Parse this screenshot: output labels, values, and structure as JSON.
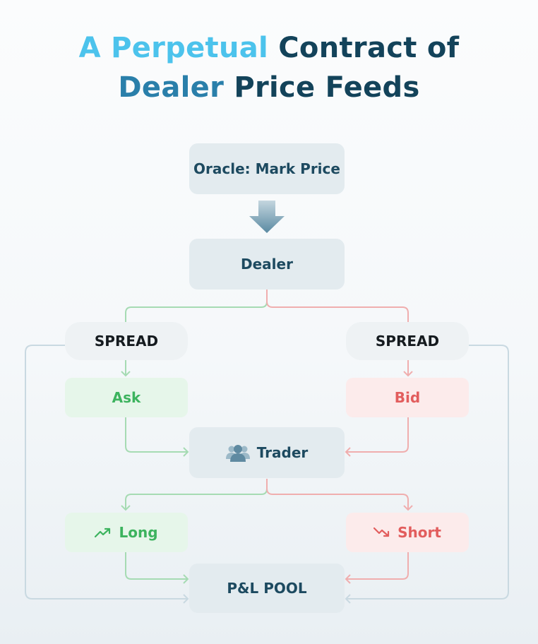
{
  "title": {
    "part1": "A Perpetual",
    "part2": "Contract of",
    "part3": "Dealer",
    "part4": "Price Feeds"
  },
  "nodes": {
    "oracle": "Oracle: Mark Price",
    "dealer": "Dealer",
    "spread_left": "SPREAD",
    "spread_right": "SPREAD",
    "ask": "Ask",
    "bid": "Bid",
    "trader": "Trader",
    "long": "Long",
    "short": "Short",
    "pool": "P&L POOL"
  },
  "icons": {
    "down_arrow": "down-arrow-icon",
    "trader": "users-icon",
    "long": "trend-up-icon",
    "short": "trend-down-icon"
  },
  "colors": {
    "title_light": "#4cc3ec",
    "title_dark": "#13435a",
    "green_line": "#a6dbb3",
    "red_line": "#f0aeae",
    "gray_line": "#c9d9e1",
    "green_text": "#3cb35e",
    "red_text": "#e25d5d"
  }
}
